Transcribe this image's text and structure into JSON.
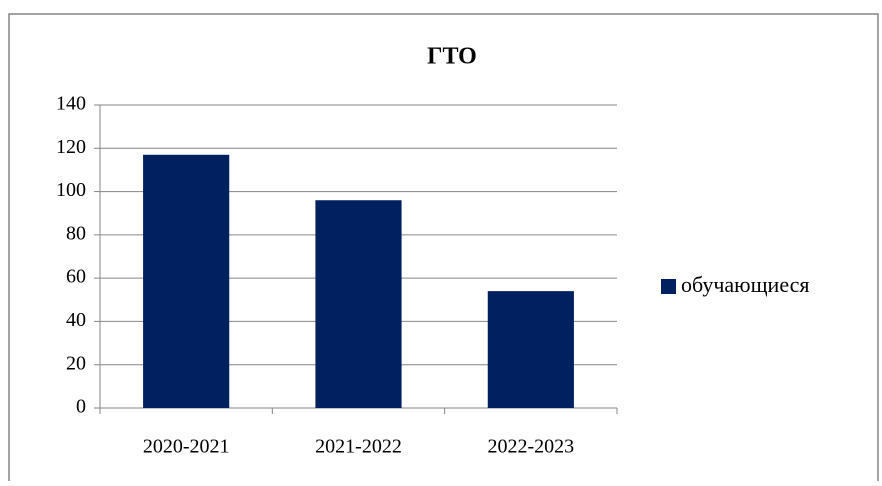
{
  "chart_data": {
    "type": "bar",
    "title": "ГТО",
    "categories": [
      "2020-2021",
      "2021-2022",
      "2022-2023"
    ],
    "series": [
      {
        "name": "обучающиеся",
        "color": "#002060",
        "values": [
          117,
          96,
          54
        ]
      }
    ],
    "ylim": [
      0,
      140
    ],
    "yticks": [
      0,
      20,
      40,
      60,
      80,
      100,
      120,
      140
    ],
    "grid": true,
    "legend": "right"
  }
}
